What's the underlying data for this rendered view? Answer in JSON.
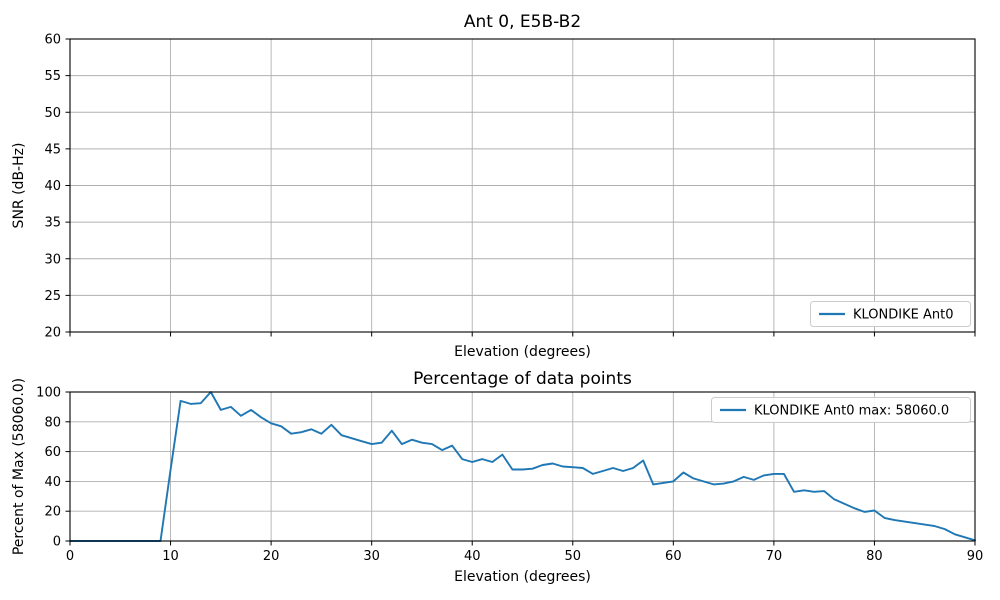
{
  "figure": {
    "background": "#ffffff",
    "accent_color": "#1f77b4",
    "grid_color": "#b0b0b0",
    "spine_color": "#000000"
  },
  "chart_data": [
    {
      "type": "line",
      "title": "Ant 0, E5B-B2",
      "xlabel": "Elevation (degrees)",
      "ylabel": "SNR (dB-Hz)",
      "xlim": [
        0,
        90
      ],
      "ylim": [
        20,
        60
      ],
      "xticks": [
        0,
        10,
        20,
        30,
        40,
        50,
        60,
        70,
        80,
        90
      ],
      "xtick_labels_visible": false,
      "yticks": [
        20,
        25,
        30,
        35,
        40,
        45,
        50,
        55,
        60
      ],
      "grid": true,
      "legend": {
        "position": "lower right",
        "entries": [
          {
            "label": "KLONDIKE Ant0",
            "color": "#1f77b4"
          }
        ]
      },
      "series": []
    },
    {
      "type": "line",
      "title": "Percentage of data points",
      "xlabel": "Elevation (degrees)",
      "ylabel": "Percent of Max (58060.0)",
      "xlim": [
        0,
        90
      ],
      "ylim": [
        0,
        100
      ],
      "xticks": [
        0,
        10,
        20,
        30,
        40,
        50,
        60,
        70,
        80,
        90
      ],
      "xtick_labels_visible": true,
      "yticks": [
        0,
        20,
        40,
        60,
        80,
        100
      ],
      "grid": true,
      "legend": {
        "position": "upper right",
        "entries": [
          {
            "label": "KLONDIKE Ant0 max: 58060.0",
            "color": "#1f77b4"
          }
        ]
      },
      "max_value": "58060.0",
      "series": [
        {
          "name": "KLONDIKE Ant0",
          "color": "#1f77b4",
          "x": [
            0,
            1,
            2,
            3,
            4,
            5,
            6,
            7,
            8,
            9,
            10,
            11,
            12,
            13,
            14,
            15,
            16,
            17,
            18,
            19,
            20,
            21,
            22,
            23,
            24,
            25,
            26,
            27,
            28,
            29,
            30,
            31,
            32,
            33,
            34,
            35,
            36,
            37,
            38,
            39,
            40,
            41,
            42,
            43,
            44,
            45,
            46,
            47,
            48,
            49,
            50,
            51,
            52,
            53,
            54,
            55,
            56,
            57,
            58,
            59,
            60,
            61,
            62,
            63,
            64,
            65,
            66,
            67,
            68,
            69,
            70,
            71,
            72,
            73,
            74,
            75,
            76,
            77,
            78,
            79,
            80,
            81,
            82,
            83,
            84,
            85,
            86,
            87,
            88,
            89,
            90
          ],
          "y": [
            0,
            0,
            0,
            0,
            0,
            0,
            0,
            0,
            0,
            0,
            48,
            94,
            92,
            92.5,
            100,
            88,
            90,
            84,
            88,
            83,
            79,
            77,
            72,
            73,
            75,
            72,
            78,
            71,
            69,
            67,
            65,
            66,
            74,
            65,
            68,
            66,
            65,
            61,
            64,
            55,
            53,
            55,
            53,
            58,
            48,
            48,
            48.5,
            51,
            52,
            50,
            49.5,
            49,
            45,
            47,
            49,
            47,
            49,
            54,
            38,
            39,
            40,
            46,
            42,
            40,
            38,
            38.5,
            40,
            43,
            41,
            44,
            45,
            45,
            33,
            34,
            33,
            33.5,
            28,
            25,
            22,
            19.5,
            20.5,
            15.5,
            14,
            13,
            12,
            11,
            10,
            8,
            4.5,
            2.5,
            0.5
          ]
        }
      ]
    }
  ]
}
